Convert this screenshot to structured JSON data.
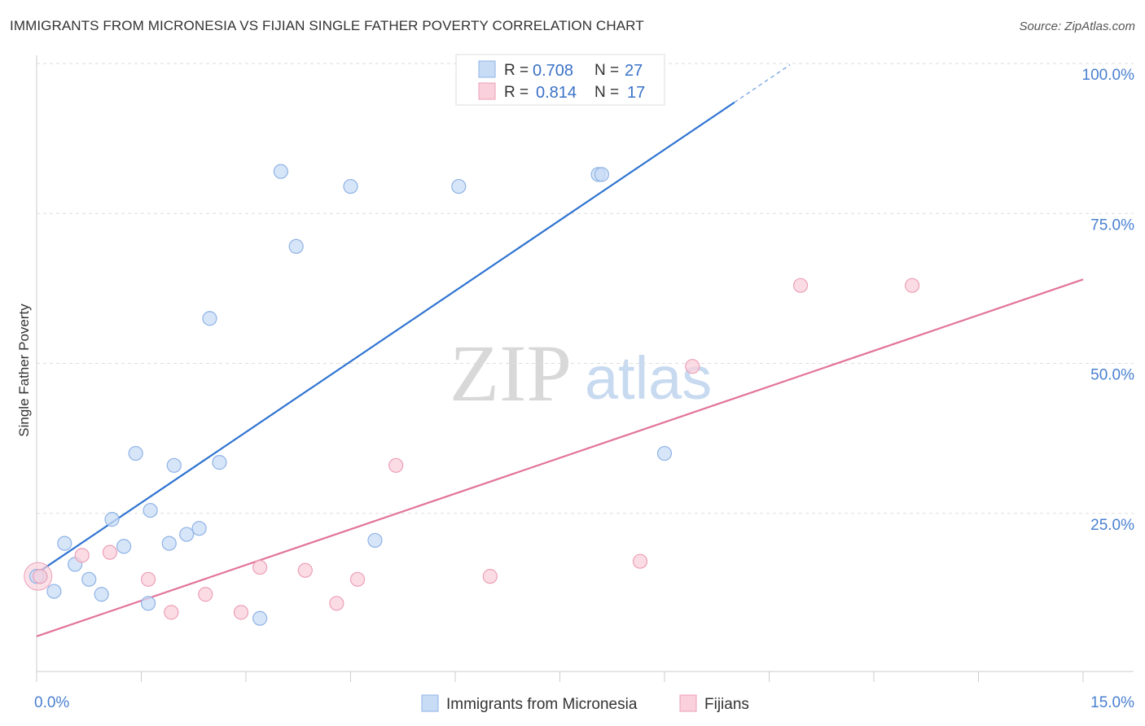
{
  "header": {
    "title": "IMMIGRANTS FROM MICRONESIA VS FIJIAN SINGLE FATHER POVERTY CORRELATION CHART",
    "source": "Source: ZipAtlas.com"
  },
  "watermark": {
    "zip": "ZIP",
    "atlas": "atlas"
  },
  "colors": {
    "blue_fill": "#c9dcf5",
    "blue_stroke": "#8fb3e6",
    "blue_line": "#2f74d0",
    "pink_fill": "#f9d0dc",
    "pink_stroke": "#eca0b8",
    "pink_line": "#e2739b",
    "grid": "#dddddd",
    "axis_label": "#4a80d0"
  },
  "stats": [
    {
      "r_label": "R =",
      "r_value": "0.708",
      "n_label": "N =",
      "n_value": "27"
    },
    {
      "r_label": "R =",
      "r_value": "0.814",
      "n_label": "N =",
      "n_value": "17"
    }
  ],
  "chart_data": {
    "type": "scatter",
    "title": "IMMIGRANTS FROM MICRONESIA VS FIJIAN SINGLE FATHER POVERTY CORRELATION CHART",
    "xlabel": "",
    "ylabel": "Single Father Poverty",
    "xlim": [
      0,
      15
    ],
    "ylim": [
      0,
      100
    ],
    "x_tick_labels": [
      "0.0%",
      "15.0%"
    ],
    "y_ticks": [
      25,
      50,
      75,
      100
    ],
    "y_tick_labels": [
      "25.0%",
      "50.0%",
      "75.0%",
      "100.0%"
    ],
    "legend_position": "bottom",
    "series": [
      {
        "name": "Immigrants from Micronesia",
        "color": "#c9dcf5",
        "r": 0.708,
        "n": 27,
        "points": [
          [
            0.05,
            14.5
          ],
          [
            0.25,
            12.0
          ],
          [
            0.4,
            20.0
          ],
          [
            0.55,
            16.5
          ],
          [
            0.75,
            14.0
          ],
          [
            0.93,
            11.5
          ],
          [
            1.08,
            24.0
          ],
          [
            1.25,
            19.5
          ],
          [
            1.42,
            35.0
          ],
          [
            1.6,
            10.0
          ],
          [
            1.63,
            25.5
          ],
          [
            1.9,
            20.0
          ],
          [
            1.97,
            33.0
          ],
          [
            2.15,
            21.5
          ],
          [
            2.33,
            22.5
          ],
          [
            2.48,
            57.5
          ],
          [
            2.62,
            33.5
          ],
          [
            3.2,
            7.5
          ],
          [
            3.5,
            82.0
          ],
          [
            3.72,
            69.5
          ],
          [
            4.5,
            79.5
          ],
          [
            4.85,
            20.5
          ],
          [
            6.05,
            79.5
          ],
          [
            8.05,
            81.5
          ],
          [
            8.1,
            81.5
          ],
          [
            9.0,
            35.0
          ],
          [
            0.0,
            14.5
          ]
        ],
        "trend": {
          "x1": 0.0,
          "y1": 15.0,
          "x2": 10.0,
          "y2": 93.5,
          "dashed_to_x": 10.8,
          "dashed_to_y": 99.8
        }
      },
      {
        "name": "Fijians",
        "color": "#f9d0dc",
        "r": 0.814,
        "n": 17,
        "points": [
          [
            0.05,
            14.5
          ],
          [
            0.65,
            18.0
          ],
          [
            1.05,
            18.5
          ],
          [
            1.6,
            14.0
          ],
          [
            1.93,
            8.5
          ],
          [
            2.42,
            11.5
          ],
          [
            2.93,
            8.5
          ],
          [
            3.2,
            16.0
          ],
          [
            3.85,
            15.5
          ],
          [
            4.3,
            10.0
          ],
          [
            4.6,
            14.0
          ],
          [
            5.15,
            33.0
          ],
          [
            6.5,
            14.5
          ],
          [
            8.65,
            17.0
          ],
          [
            9.4,
            49.5
          ],
          [
            10.95,
            63.0
          ],
          [
            12.55,
            63.0
          ]
        ],
        "trend": {
          "x1": 0.0,
          "y1": 4.5,
          "x2": 15.0,
          "y2": 64.0
        }
      }
    ]
  }
}
